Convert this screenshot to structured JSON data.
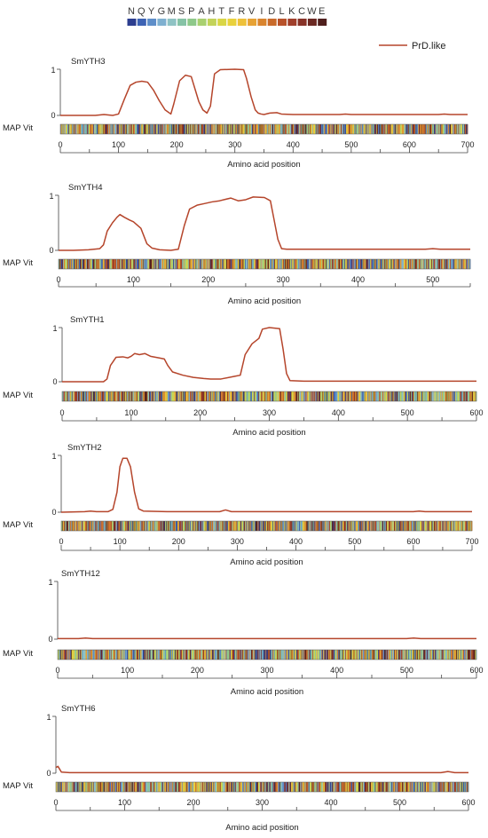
{
  "header": {
    "letters": [
      "N",
      "Q",
      "Y",
      "G",
      "M",
      "S",
      "P",
      "A",
      "H",
      "T",
      "F",
      "R",
      "V",
      "I",
      "D",
      "L",
      "K",
      "C",
      "W",
      "E"
    ],
    "colors": [
      "#2c3e8f",
      "#3d63b4",
      "#5e8ec9",
      "#7fb0d0",
      "#8fc3c4",
      "#86c3a6",
      "#8ec98a",
      "#a9d070",
      "#c3d35a",
      "#d9d646",
      "#e9d13c",
      "#eec13a",
      "#e7a234",
      "#d9842e",
      "#c96a2a",
      "#b8522a",
      "#a03f2b",
      "#873227",
      "#6b2822",
      "#4f1f1d"
    ]
  },
  "legend": {
    "label": "PrD.like",
    "color": "#b5452b"
  },
  "colors": {
    "curve": "#b5452b",
    "axis": "#444444"
  },
  "common": {
    "map_label": "MAP  Vit",
    "xlabel": "Amino acid position",
    "y_top": "1",
    "y_bottom": "0"
  },
  "chart_data": [
    {
      "type": "line",
      "name": "SmYTH3",
      "xlim": [
        0,
        700
      ],
      "ylim": [
        0,
        1
      ],
      "xticks": [
        0,
        100,
        200,
        300,
        400,
        500,
        600,
        700
      ],
      "points": [
        [
          0,
          0
        ],
        [
          60,
          0
        ],
        [
          75,
          0.02
        ],
        [
          90,
          0
        ],
        [
          100,
          0.03
        ],
        [
          110,
          0.35
        ],
        [
          120,
          0.65
        ],
        [
          130,
          0.72
        ],
        [
          140,
          0.74
        ],
        [
          150,
          0.72
        ],
        [
          160,
          0.55
        ],
        [
          170,
          0.32
        ],
        [
          180,
          0.12
        ],
        [
          190,
          0.03
        ],
        [
          195,
          0.25
        ],
        [
          205,
          0.75
        ],
        [
          215,
          0.87
        ],
        [
          225,
          0.84
        ],
        [
          232,
          0.55
        ],
        [
          238,
          0.3
        ],
        [
          245,
          0.12
        ],
        [
          252,
          0.05
        ],
        [
          258,
          0.2
        ],
        [
          265,
          0.9
        ],
        [
          275,
          0.99
        ],
        [
          300,
          1
        ],
        [
          315,
          0.99
        ],
        [
          320,
          0.8
        ],
        [
          328,
          0.4
        ],
        [
          335,
          0.12
        ],
        [
          340,
          0.05
        ],
        [
          345,
          0.03
        ],
        [
          350,
          0.02
        ],
        [
          360,
          0.05
        ],
        [
          372,
          0.06
        ],
        [
          380,
          0.03
        ],
        [
          400,
          0.02
        ],
        [
          480,
          0.02
        ],
        [
          490,
          0.03
        ],
        [
          500,
          0.02
        ],
        [
          650,
          0.02
        ],
        [
          660,
          0.03
        ],
        [
          670,
          0.02
        ],
        [
          700,
          0.02
        ]
      ]
    },
    {
      "type": "line",
      "name": "SmYTH4",
      "xlim": [
        0,
        550
      ],
      "ylim": [
        0,
        1
      ],
      "xticks": [
        0,
        100,
        200,
        300,
        400,
        500
      ],
      "points": [
        [
          0,
          0
        ],
        [
          20,
          0
        ],
        [
          40,
          0.01
        ],
        [
          55,
          0.03
        ],
        [
          60,
          0.1
        ],
        [
          65,
          0.35
        ],
        [
          72,
          0.5
        ],
        [
          78,
          0.6
        ],
        [
          82,
          0.65
        ],
        [
          88,
          0.6
        ],
        [
          95,
          0.55
        ],
        [
          100,
          0.52
        ],
        [
          110,
          0.4
        ],
        [
          118,
          0.12
        ],
        [
          125,
          0.04
        ],
        [
          135,
          0.01
        ],
        [
          150,
          0.0
        ],
        [
          160,
          0.02
        ],
        [
          168,
          0.45
        ],
        [
          175,
          0.75
        ],
        [
          185,
          0.82
        ],
        [
          195,
          0.85
        ],
        [
          205,
          0.88
        ],
        [
          215,
          0.9
        ],
        [
          230,
          0.95
        ],
        [
          240,
          0.9
        ],
        [
          250,
          0.92
        ],
        [
          260,
          0.97
        ],
        [
          275,
          0.96
        ],
        [
          283,
          0.9
        ],
        [
          288,
          0.55
        ],
        [
          293,
          0.2
        ],
        [
          298,
          0.03
        ],
        [
          305,
          0.02
        ],
        [
          400,
          0.02
        ],
        [
          490,
          0.02
        ],
        [
          500,
          0.03
        ],
        [
          510,
          0.02
        ],
        [
          550,
          0.02
        ]
      ]
    },
    {
      "type": "line",
      "name": "SmYTH1",
      "xlim": [
        0,
        600
      ],
      "ylim": [
        0,
        1
      ],
      "xticks": [
        0,
        100,
        200,
        300,
        400,
        500,
        600
      ],
      "points": [
        [
          0,
          0
        ],
        [
          60,
          0.0
        ],
        [
          65,
          0.05
        ],
        [
          70,
          0.3
        ],
        [
          78,
          0.45
        ],
        [
          88,
          0.46
        ],
        [
          95,
          0.44
        ],
        [
          100,
          0.47
        ],
        [
          105,
          0.52
        ],
        [
          112,
          0.5
        ],
        [
          120,
          0.52
        ],
        [
          128,
          0.47
        ],
        [
          140,
          0.44
        ],
        [
          148,
          0.42
        ],
        [
          153,
          0.3
        ],
        [
          160,
          0.18
        ],
        [
          175,
          0.12
        ],
        [
          190,
          0.08
        ],
        [
          205,
          0.06
        ],
        [
          215,
          0.05
        ],
        [
          230,
          0.05
        ],
        [
          250,
          0.1
        ],
        [
          258,
          0.12
        ],
        [
          265,
          0.5
        ],
        [
          275,
          0.7
        ],
        [
          285,
          0.8
        ],
        [
          290,
          0.97
        ],
        [
          300,
          1.0
        ],
        [
          315,
          0.98
        ],
        [
          320,
          0.6
        ],
        [
          325,
          0.15
        ],
        [
          330,
          0.02
        ],
        [
          350,
          0.01
        ],
        [
          400,
          0.01
        ],
        [
          500,
          0.01
        ],
        [
          600,
          0.01
        ]
      ]
    },
    {
      "type": "line",
      "name": "SmYTH2",
      "xlim": [
        0,
        700
      ],
      "ylim": [
        0,
        1
      ],
      "xticks": [
        0,
        100,
        200,
        300,
        400,
        500,
        600,
        700
      ],
      "points": [
        [
          0,
          0
        ],
        [
          40,
          0.01
        ],
        [
          50,
          0.02
        ],
        [
          60,
          0.01
        ],
        [
          80,
          0.01
        ],
        [
          88,
          0.05
        ],
        [
          95,
          0.35
        ],
        [
          100,
          0.8
        ],
        [
          105,
          0.95
        ],
        [
          112,
          0.95
        ],
        [
          118,
          0.8
        ],
        [
          125,
          0.35
        ],
        [
          132,
          0.06
        ],
        [
          140,
          0.02
        ],
        [
          180,
          0.01
        ],
        [
          270,
          0.01
        ],
        [
          280,
          0.04
        ],
        [
          290,
          0.01
        ],
        [
          600,
          0.01
        ],
        [
          610,
          0.02
        ],
        [
          620,
          0.01
        ],
        [
          700,
          0.01
        ]
      ]
    },
    {
      "type": "line",
      "name": "SmYTH12",
      "xlim": [
        0,
        600
      ],
      "ylim": [
        0,
        1
      ],
      "xticks": [
        0,
        100,
        200,
        300,
        400,
        500,
        600
      ],
      "points": [
        [
          0,
          0.01
        ],
        [
          30,
          0.01
        ],
        [
          40,
          0.02
        ],
        [
          50,
          0.01
        ],
        [
          500,
          0.01
        ],
        [
          510,
          0.02
        ],
        [
          520,
          0.01
        ],
        [
          600,
          0.01
        ]
      ]
    },
    {
      "type": "line",
      "name": "SmYTH6",
      "xlim": [
        0,
        600
      ],
      "ylim": [
        0,
        1
      ],
      "xticks": [
        0,
        100,
        200,
        300,
        400,
        500,
        600
      ],
      "points": [
        [
          0,
          0.1
        ],
        [
          3,
          0.12
        ],
        [
          8,
          0.02
        ],
        [
          20,
          0.01
        ],
        [
          300,
          0.01
        ],
        [
          560,
          0.01
        ],
        [
          570,
          0.03
        ],
        [
          580,
          0.01
        ],
        [
          600,
          0.01
        ]
      ]
    }
  ]
}
